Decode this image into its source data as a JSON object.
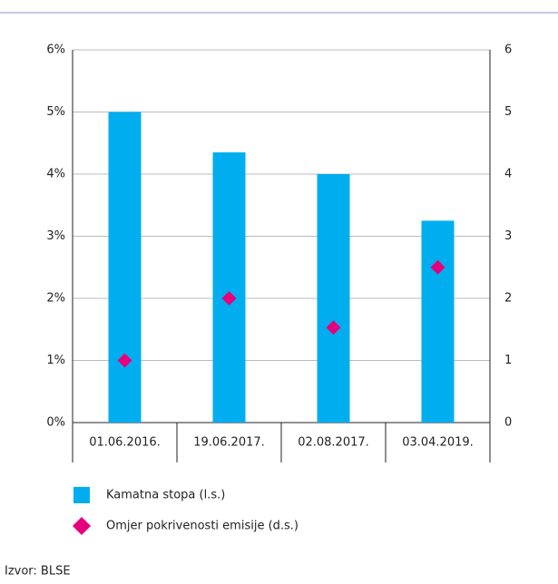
{
  "chart_data": {
    "type": "bar",
    "categories": [
      "01.06.2016.",
      "19.06.2017.",
      "02.08.2017.",
      "03.04.2019."
    ],
    "series": [
      {
        "name": "Kamatna stopa (l.s.)",
        "color": "#00aeef",
        "type": "bar",
        "values": [
          5.0,
          4.35,
          4.0,
          3.25
        ]
      },
      {
        "name": "Omjer pokrivenosti emisije (d.s.)",
        "color": "#e6007e",
        "type": "scatter",
        "axis": "y2",
        "values": [
          1.0,
          2.0,
          1.53,
          2.5
        ]
      }
    ],
    "ylim": [
      0,
      6
    ],
    "yticks": [
      {
        "value": 0,
        "label": "0%"
      },
      {
        "value": 1,
        "label": "1%"
      },
      {
        "value": 2,
        "label": "2%"
      },
      {
        "value": 3,
        "label": "3%"
      },
      {
        "value": 4,
        "label": "4%"
      },
      {
        "value": 5,
        "label": "5%"
      },
      {
        "value": 6,
        "label": "6%"
      }
    ],
    "y2lim": [
      0,
      6
    ],
    "y2ticks": [
      0,
      1,
      2,
      3,
      4,
      5,
      6
    ],
    "grid": true,
    "source": "Izvor: BLSE"
  }
}
